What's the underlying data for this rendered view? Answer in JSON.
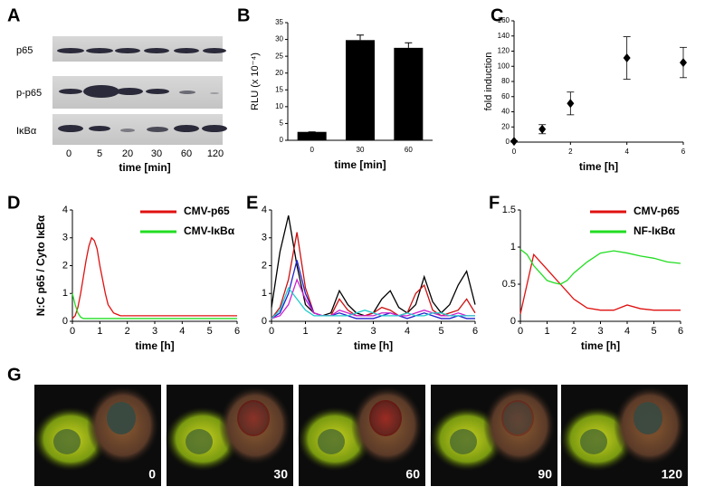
{
  "blot": {
    "label": "A",
    "rows": [
      "p65",
      "p-p65",
      "IκBα"
    ],
    "lanes": [
      "0",
      "5",
      "20",
      "30",
      "60",
      "120"
    ],
    "xlabel": "time [min]"
  },
  "chart_data": [
    {
      "type": "bar",
      "label": "B",
      "ylabel": "RLU (x 10⁻⁴)",
      "xlabel": "time [min]",
      "categories": [
        "0",
        "30",
        "60"
      ],
      "values": [
        2.5,
        29.8,
        27.5
      ],
      "errors": [
        0,
        1.5,
        1.5
      ],
      "color": "#000000",
      "ylim": [
        0,
        35
      ],
      "yticks": [
        0,
        5,
        10,
        15,
        20,
        25,
        30,
        35
      ]
    },
    {
      "type": "scatter",
      "label": "C",
      "ylabel": "fold induction",
      "xlabel": "time [h]",
      "x": [
        0,
        1,
        2,
        4,
        6
      ],
      "values": [
        1,
        17,
        51,
        111,
        105
      ],
      "errors": [
        1,
        6,
        15,
        28,
        20
      ],
      "color": "#000000",
      "xlim": [
        0,
        6
      ],
      "xticks": [
        0,
        2,
        4,
        6
      ],
      "ylim": [
        0,
        160
      ],
      "yticks": [
        0,
        20,
        40,
        60,
        80,
        100,
        120,
        140,
        160
      ]
    },
    {
      "type": "line",
      "label": "D",
      "ylabel": "N:C p65 / Cyto IκBα",
      "xlabel": "time [h]",
      "x": [
        0,
        0.1,
        0.2,
        0.3,
        0.4,
        0.5,
        0.6,
        0.7,
        0.8,
        0.9,
        1,
        1.1,
        1.2,
        1.3,
        1.5,
        1.75,
        2,
        2.5,
        3,
        3.5,
        4,
        4.5,
        5,
        5.5,
        6
      ],
      "series": [
        {
          "name": "CMV-p65",
          "color": "#e01010",
          "values": [
            0.1,
            0.2,
            0.5,
            1.0,
            1.6,
            2.2,
            2.7,
            3.0,
            2.9,
            2.6,
            2.0,
            1.5,
            1.0,
            0.6,
            0.3,
            0.2,
            0.2,
            0.2,
            0.2,
            0.2,
            0.2,
            0.2,
            0.2,
            0.2,
            0.2
          ]
        },
        {
          "name": "CMV-IκBα",
          "color": "#22dd22",
          "values": [
            1.0,
            0.6,
            0.3,
            0.15,
            0.1,
            0.1,
            0.1,
            0.1,
            0.1,
            0.1,
            0.1,
            0.1,
            0.1,
            0.1,
            0.1,
            0.1,
            0.1,
            0.1,
            0.1,
            0.1,
            0.1,
            0.1,
            0.1,
            0.1,
            0.1
          ]
        }
      ],
      "xlim": [
        0,
        6
      ],
      "xticks": [
        0,
        1,
        2,
        3,
        4,
        5,
        6
      ],
      "ylim": [
        0,
        4
      ],
      "yticks": [
        0,
        1,
        2,
        3,
        4
      ]
    },
    {
      "type": "line",
      "label": "E",
      "xlabel": "time [h]",
      "x": [
        0,
        0.25,
        0.5,
        0.75,
        1,
        1.25,
        1.5,
        1.75,
        2,
        2.25,
        2.5,
        2.75,
        3,
        3.25,
        3.5,
        3.75,
        4,
        4.25,
        4.5,
        4.75,
        5,
        5.25,
        5.5,
        5.75,
        6
      ],
      "series": [
        {
          "color": "#000000",
          "values": [
            0.5,
            2.5,
            3.8,
            2.0,
            0.6,
            0.3,
            0.2,
            0.3,
            1.1,
            0.6,
            0.3,
            0.2,
            0.3,
            0.8,
            1.1,
            0.5,
            0.3,
            0.6,
            1.6,
            0.7,
            0.3,
            0.6,
            1.3,
            1.8,
            0.6
          ]
        },
        {
          "color": "#cc1111",
          "values": [
            0.1,
            0.5,
            1.5,
            3.2,
            1.2,
            0.3,
            0.2,
            0.2,
            0.8,
            0.4,
            0.2,
            0.2,
            0.3,
            0.5,
            0.4,
            0.2,
            0.3,
            1.0,
            1.3,
            0.4,
            0.2,
            0.3,
            0.4,
            0.8,
            0.3
          ]
        },
        {
          "color": "#2222cc",
          "values": [
            0.1,
            0.3,
            1.0,
            2.2,
            1.0,
            0.3,
            0.2,
            0.2,
            0.3,
            0.2,
            0.1,
            0.1,
            0.1,
            0.2,
            0.3,
            0.2,
            0.1,
            0.2,
            0.3,
            0.2,
            0.1,
            0.1,
            0.2,
            0.1,
            0.1
          ]
        },
        {
          "color": "#cc22cc",
          "values": [
            0.1,
            0.2,
            0.6,
            1.5,
            0.8,
            0.3,
            0.2,
            0.2,
            0.4,
            0.3,
            0.2,
            0.2,
            0.2,
            0.3,
            0.3,
            0.2,
            0.2,
            0.3,
            0.4,
            0.3,
            0.2,
            0.2,
            0.3,
            0.2,
            0.2
          ]
        },
        {
          "color": "#22cccc",
          "values": [
            0.1,
            0.4,
            1.2,
            0.8,
            0.4,
            0.2,
            0.2,
            0.2,
            0.2,
            0.2,
            0.3,
            0.4,
            0.3,
            0.2,
            0.2,
            0.2,
            0.3,
            0.2,
            0.2,
            0.3,
            0.3,
            0.2,
            0.2,
            0.2,
            0.2
          ]
        }
      ],
      "xlim": [
        0,
        6
      ],
      "xticks": [
        0,
        1,
        2,
        3,
        4,
        5,
        6
      ],
      "ylim": [
        0,
        4
      ],
      "yticks": [
        0,
        1,
        2,
        3,
        4
      ]
    },
    {
      "type": "line",
      "label": "F",
      "xlabel": "time [h]",
      "x": [
        0,
        0.25,
        0.5,
        0.75,
        1,
        1.25,
        1.5,
        1.75,
        2,
        2.5,
        3,
        3.5,
        4,
        4.5,
        5,
        5.5,
        6
      ],
      "series": [
        {
          "name": "CMV-p65",
          "color": "#e01010",
          "values": [
            0.1,
            0.5,
            0.9,
            0.8,
            0.7,
            0.6,
            0.5,
            0.4,
            0.3,
            0.18,
            0.15,
            0.15,
            0.22,
            0.17,
            0.15,
            0.15,
            0.15
          ]
        },
        {
          "name": "NF-IκBα",
          "color": "#22dd22",
          "values": [
            0.97,
            0.9,
            0.75,
            0.65,
            0.55,
            0.52,
            0.5,
            0.55,
            0.65,
            0.8,
            0.92,
            0.95,
            0.92,
            0.88,
            0.85,
            0.8,
            0.78
          ]
        }
      ],
      "xlim": [
        0,
        6
      ],
      "xticks": [
        0,
        1,
        2,
        3,
        4,
        5,
        6
      ],
      "ylim": [
        0,
        1.5
      ],
      "yticks": [
        0,
        0.5,
        1,
        1.5
      ]
    }
  ],
  "micrographs": {
    "label": "G",
    "times": [
      "0",
      "30",
      "60",
      "90",
      "120"
    ]
  }
}
